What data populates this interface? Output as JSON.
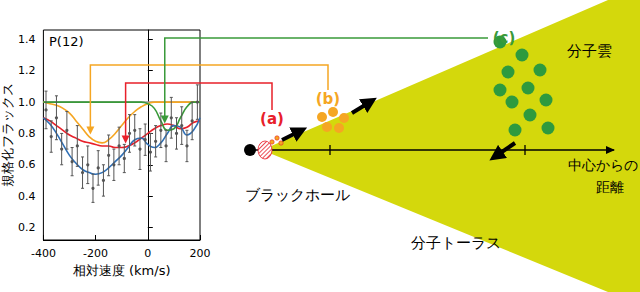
{
  "chart_data": {
    "type": "line",
    "title": "P(12)",
    "x_label": "相対速度 (km/s)",
    "y_label": "規格化フラックス",
    "xlim": [
      -400,
      200
    ],
    "xticks": [
      -400,
      -200,
      0,
      200
    ],
    "ylim": [
      0.12,
      1.46
    ],
    "yticks": [
      0.2,
      0.4,
      0.6,
      0.8,
      {
        "value": 1,
        "label": "1.0"
      },
      1.2,
      1.4
    ],
    "grid": false,
    "x": [
      -400,
      -375,
      -350,
      -325,
      -300,
      -275,
      -250,
      -225,
      -200,
      -175,
      -150,
      -125,
      -100,
      -75,
      -50,
      -25,
      0,
      25,
      50,
      75,
      100,
      125,
      150,
      175,
      200
    ],
    "series": [
      {
        "type": "line",
        "color": "#9a9a9a",
        "values": [
          1,
          1,
          1,
          1,
          1,
          1,
          1,
          1,
          1,
          1,
          1,
          1,
          1,
          1,
          1,
          1,
          1,
          1,
          1,
          1,
          1,
          1,
          1,
          1,
          1
        ]
      },
      {
        "type": "line",
        "color": "#f5a623",
        "values": [
          1.0,
          0.99,
          0.98,
          0.96,
          0.93,
          0.88,
          0.83,
          0.78,
          0.75,
          0.74,
          0.76,
          0.8,
          0.85,
          0.9,
          0.94,
          0.97,
          0.99,
          1.0,
          1.0,
          1.0,
          1.0,
          1.0,
          1.0,
          1.0,
          1.0
        ]
      },
      {
        "type": "line",
        "color": "#e8202a",
        "values": [
          0.9,
          0.88,
          0.85,
          0.82,
          0.79,
          0.77,
          0.75,
          0.74,
          0.73,
          0.72,
          0.72,
          0.71,
          0.71,
          0.72,
          0.74,
          0.77,
          0.8,
          0.83,
          0.85,
          0.86,
          0.85,
          0.83,
          0.84,
          0.87,
          0.88
        ]
      },
      {
        "type": "line",
        "color": "#2f6fb5",
        "values": [
          0.9,
          0.86,
          0.8,
          0.73,
          0.66,
          0.61,
          0.57,
          0.55,
          0.54,
          0.55,
          0.58,
          0.62,
          0.66,
          0.71,
          0.76,
          0.77,
          0.73,
          0.71,
          0.74,
          0.8,
          0.85,
          0.84,
          0.79,
          0.82,
          0.9
        ]
      },
      {
        "type": "line",
        "color": "#3a9a3a",
        "values": [
          1,
          1,
          1,
          1,
          1,
          1,
          1,
          1,
          1,
          1,
          1,
          1,
          1,
          1,
          1,
          1,
          0.99,
          0.96,
          0.88,
          0.82,
          0.83,
          0.9,
          0.97,
          1.0,
          1.0
        ]
      },
      {
        "type": "scatter",
        "color": "#555555",
        "marker": "circle",
        "x": [
          -390,
          -370,
          -350,
          -330,
          -310,
          -290,
          -270,
          -250,
          -230,
          -210,
          -190,
          -170,
          -150,
          -130,
          -110,
          -90,
          -70,
          -50,
          -30,
          -10,
          10,
          30,
          50,
          70,
          90,
          110,
          130,
          150,
          170,
          190
        ],
        "values": [
          0.95,
          0.78,
          0.9,
          0.7,
          0.82,
          0.62,
          0.72,
          0.55,
          0.6,
          0.45,
          0.58,
          0.5,
          0.66,
          0.6,
          0.72,
          0.64,
          0.8,
          0.82,
          0.7,
          0.76,
          0.68,
          0.75,
          0.82,
          0.72,
          0.9,
          0.8,
          0.85,
          0.72,
          0.88,
          1.0
        ],
        "errors": [
          0.12,
          0.1,
          0.14,
          0.1,
          0.12,
          0.09,
          0.13,
          0.1,
          0.12,
          0.09,
          0.11,
          0.1,
          0.13,
          0.1,
          0.12,
          0.09,
          0.12,
          0.1,
          0.13,
          0.1,
          0.12,
          0.1,
          0.11,
          0.1,
          0.13,
          0.1,
          0.12,
          0.1,
          0.12,
          0.11
        ]
      }
    ]
  },
  "diagram": {
    "markers": [
      {
        "label": "(a)",
        "velocity": -85,
        "color": "#e8202a"
      },
      {
        "label": "(b)",
        "velocity": -220,
        "color": "#f5a623"
      },
      {
        "label": "(c)",
        "velocity": 65,
        "color": "#3a9a3a"
      }
    ],
    "black_hole": "ブラックホール",
    "molecular_cloud": "分子雲",
    "torus": "分子トーラス",
    "axis_label": [
      "中心からの",
      "距離"
    ]
  }
}
